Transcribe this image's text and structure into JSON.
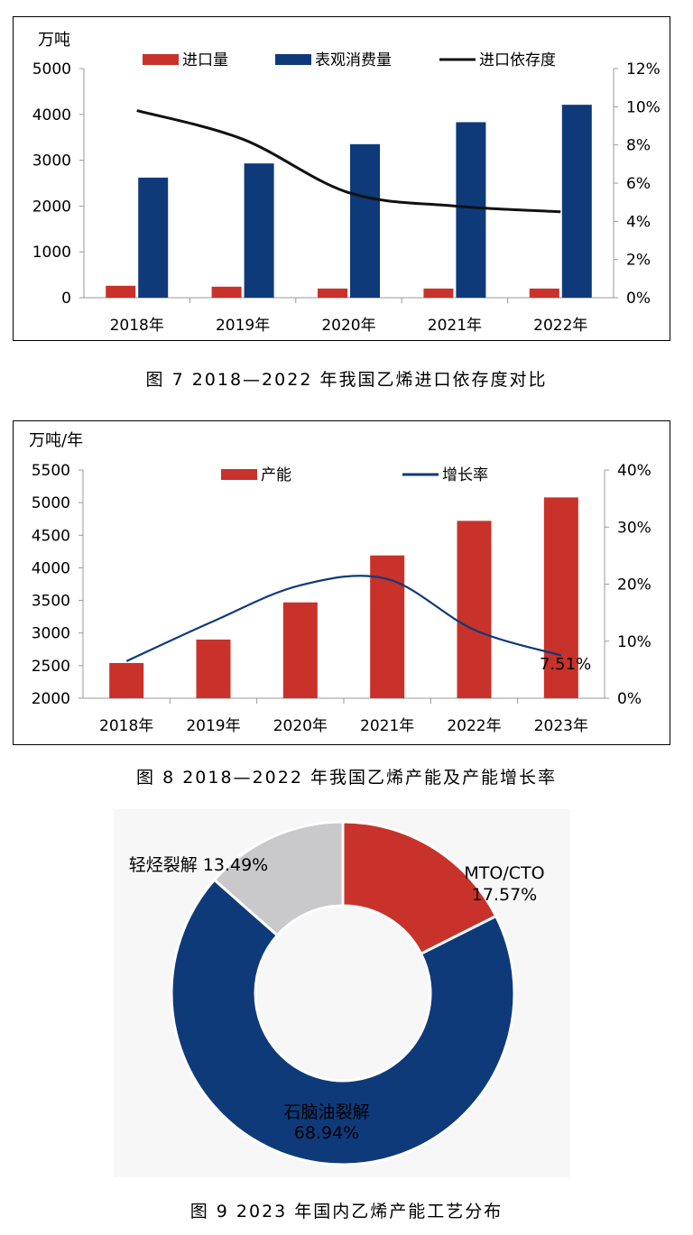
{
  "captions": {
    "fig7": "图 7  2018—2022 年我国乙烯进口依存度对比",
    "fig8": "图 8  2018—2022 年我国乙烯产能及产能增长率",
    "fig9": "图 9  2023 年国内乙烯产能工艺分布"
  },
  "colors": {
    "red": "#c8322a",
    "navy": "#0e3a7a",
    "gray": "#c9c9cb",
    "black": "#111111"
  },
  "chart_data": [
    {
      "type": "bar",
      "title": "",
      "ylabel": "万吨",
      "categories": [
        "2018年",
        "2019年",
        "2020年",
        "2021年",
        "2022年"
      ],
      "series": [
        {
          "name": "进口量",
          "type": "bar",
          "color": "#c8322a",
          "values": [
            260,
            240,
            200,
            200,
            200
          ]
        },
        {
          "name": "表观消费量",
          "type": "bar",
          "color": "#0e3a7a",
          "values": [
            2620,
            2930,
            3350,
            3830,
            4210
          ]
        },
        {
          "name": "进口依存度",
          "type": "line",
          "axis": "right",
          "color": "#111111",
          "values": [
            9.8,
            8.3,
            5.5,
            4.8,
            4.5
          ]
        }
      ],
      "ylim": [
        0,
        5000
      ],
      "yticks": [
        "0",
        "1000",
        "2000",
        "3000",
        "4000",
        "5000"
      ],
      "y2lim": [
        0,
        12
      ],
      "y2ticks": [
        "0%",
        "2%",
        "4%",
        "6%",
        "8%",
        "10%",
        "12%"
      ],
      "legend": "top"
    },
    {
      "type": "bar",
      "title": "",
      "ylabel": "万吨/年",
      "categories": [
        "2018年",
        "2019年",
        "2020年",
        "2021年",
        "2022年",
        "2023年"
      ],
      "series": [
        {
          "name": "产能",
          "type": "bar",
          "color": "#c8322a",
          "values": [
            2540,
            2900,
            3470,
            4190,
            4720,
            5080
          ]
        },
        {
          "name": "增长率",
          "type": "line",
          "axis": "right",
          "color": "#0e3a7a",
          "values": [
            6.5,
            13.5,
            19.8,
            20.9,
            12.0,
            7.51
          ]
        }
      ],
      "annotation": "7.51%",
      "ylim": [
        2000,
        5500
      ],
      "yticks": [
        "2000",
        "2500",
        "3000",
        "3500",
        "4000",
        "4500",
        "5000",
        "5500"
      ],
      "y2lim": [
        0,
        40
      ],
      "y2ticks": [
        "0%",
        "10%",
        "20%",
        "30%",
        "40%"
      ],
      "legend": "top"
    },
    {
      "type": "pie",
      "style": "donut",
      "slices": [
        {
          "name": "MTO/CTO",
          "label": "MTO/CTO",
          "pct_label": "17.57%",
          "value": 17.57,
          "color": "#c8322a"
        },
        {
          "name": "石脑油裂解",
          "label": "石脑油裂解",
          "pct_label": "68.94%",
          "value": 68.94,
          "color": "#0e3a7a"
        },
        {
          "name": "轻烃裂解",
          "label": "轻烃裂解 13.49%",
          "value": 13.49,
          "color": "#c9c9cb"
        }
      ]
    }
  ]
}
